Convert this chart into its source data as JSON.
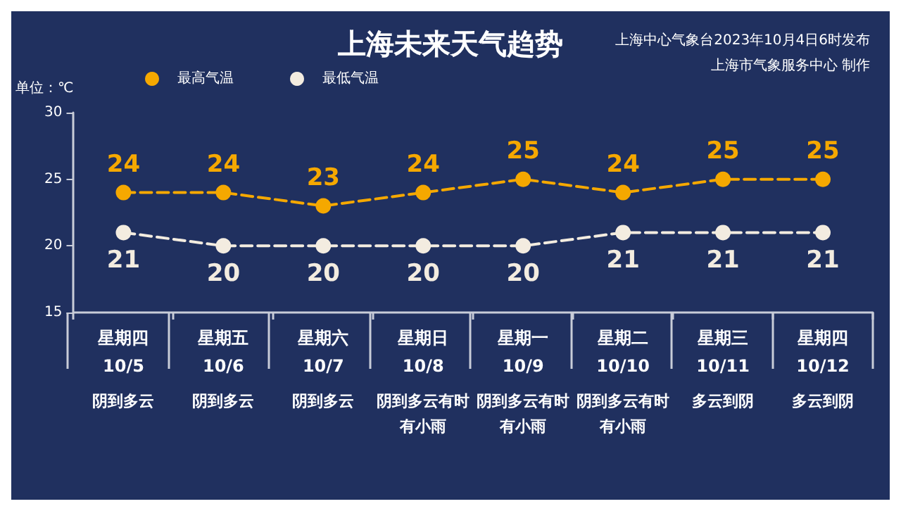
{
  "chart_data": {
    "type": "line",
    "title": "上海未来天气趋势",
    "ylabel": "单位：℃",
    "annotations": [
      "上海中心气象台2023年10月4日6时发布",
      "上海市气象服务中心 制作"
    ],
    "categories": [
      "星期四\n10/5\n阴到多云",
      "星期五\n10/6\n阴到多云",
      "星期六\n10/7\n阴到多云",
      "星期日\n10/8\n阴到多云有时有小雨",
      "星期一\n10/9\n阴到多云有时有小雨",
      "星期二\n10/10\n阴到多云有时有小雨",
      "星期三\n10/11\n多云到阴",
      "星期四\n10/12\n多云到阴"
    ],
    "series": [
      {
        "name": "最高气温",
        "color": "#f5a800",
        "values": [
          24,
          24,
          23,
          24,
          25,
          24,
          25,
          25
        ]
      },
      {
        "name": "最低气温",
        "color": "#f3ece0",
        "values": [
          21,
          20,
          20,
          20,
          20,
          21,
          21,
          21
        ]
      }
    ],
    "ylim": [
      15,
      30
    ],
    "yticks": [
      15,
      20,
      25,
      30
    ],
    "grid": false,
    "legend": "top left",
    "marker": "circle",
    "line_style": "dashed",
    "data_labels": true
  }
}
